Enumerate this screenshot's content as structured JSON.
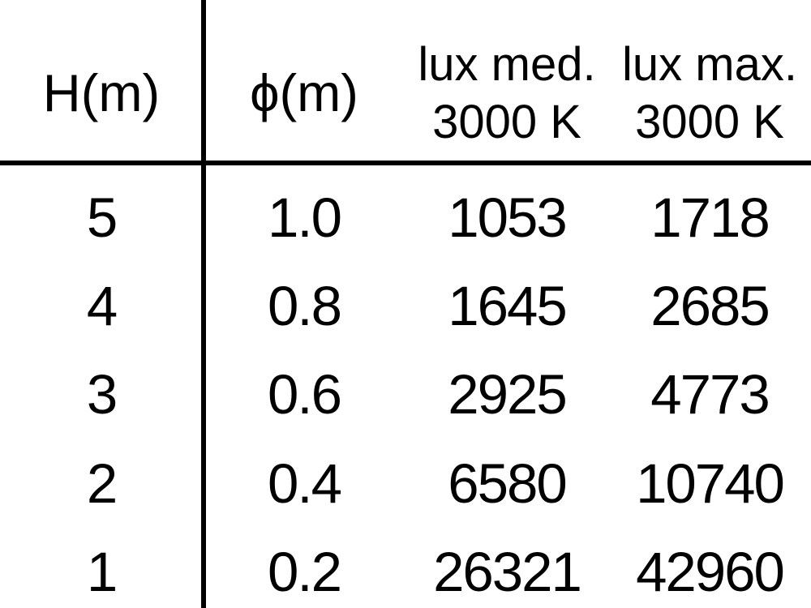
{
  "chart_data": {
    "type": "table",
    "columns": [
      "H(m)",
      "ϕ(m)",
      "lux med. 3000 K",
      "lux max. 3000 K"
    ],
    "rows": [
      [
        5,
        1.0,
        1053,
        1718
      ],
      [
        4,
        0.8,
        1645,
        2685
      ],
      [
        3,
        0.6,
        2925,
        4773
      ],
      [
        2,
        0.4,
        6580,
        10740
      ],
      [
        1,
        0.2,
        26321,
        42960
      ]
    ]
  },
  "table": {
    "header": {
      "h": "H(m)",
      "phi": "ϕ(m)",
      "lux_med_line1": "lux med.",
      "lux_med_line2": "3000 K",
      "lux_max_line1": "lux max.",
      "lux_max_line2": "3000 K"
    },
    "rows": [
      [
        "5",
        "1.0",
        "1053",
        "1718"
      ],
      [
        "4",
        "0.8",
        "1645",
        "2685"
      ],
      [
        "3",
        "0.6",
        "2925",
        "4773"
      ],
      [
        "2",
        "0.4",
        "6580",
        "10740"
      ],
      [
        "1",
        "0.2",
        "26321",
        "42960"
      ]
    ],
    "colors": {
      "text": "#000000",
      "background": "#ffffff",
      "rule": "#000000"
    }
  }
}
